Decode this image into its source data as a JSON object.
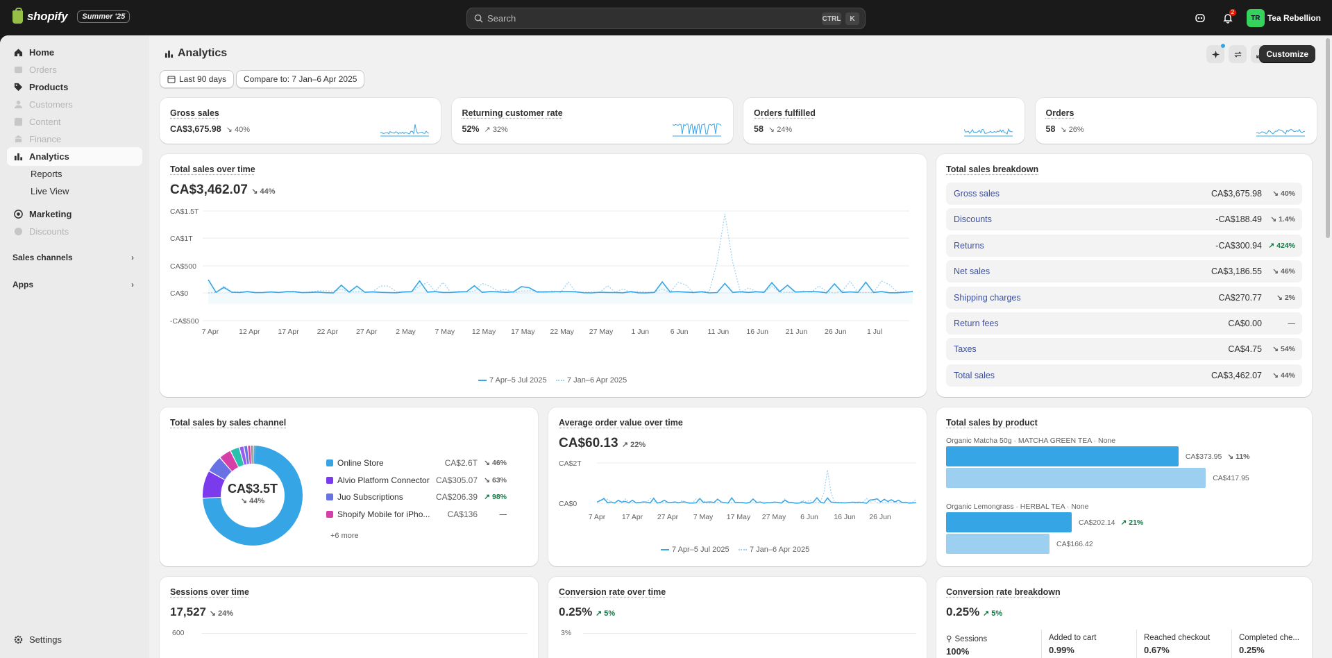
{
  "topbar": {
    "brand": "shopify",
    "edition": "Summer '25",
    "search_placeholder": "Search",
    "kbd1": "CTRL",
    "kbd2": "K",
    "notif_count": "2",
    "avatar_initials": "TR",
    "store_name": "Tea Rebellion"
  },
  "sidebar": {
    "items": [
      {
        "label": "Home"
      },
      {
        "label": "Orders"
      },
      {
        "label": "Products"
      },
      {
        "label": "Customers"
      },
      {
        "label": "Content"
      },
      {
        "label": "Finance"
      },
      {
        "label": "Analytics"
      },
      {
        "label": "Reports"
      },
      {
        "label": "Live View"
      },
      {
        "label": "Marketing"
      },
      {
        "label": "Discounts"
      }
    ],
    "sales_channels": "Sales channels",
    "apps": "Apps",
    "settings": "Settings"
  },
  "header": {
    "title": "Analytics",
    "date_range": "Last 90 days",
    "compare": "Compare to: 7 Jan–6 Apr 2025",
    "customize": "Customize"
  },
  "kpis": [
    {
      "label": "Gross sales",
      "value": "CA$3,675.98",
      "change": "40%",
      "dir": "down"
    },
    {
      "label": "Returning customer rate",
      "value": "52%",
      "change": "32%",
      "dir": "up"
    },
    {
      "label": "Orders fulfilled",
      "value": "58",
      "change": "24%",
      "dir": "down"
    },
    {
      "label": "Orders",
      "value": "58",
      "change": "26%",
      "dir": "down"
    }
  ],
  "total_sales": {
    "title": "Total sales over time",
    "value": "CA$3,462.07",
    "change": "44%",
    "yticks": [
      "CA$1.5T",
      "CA$1T",
      "CA$500",
      "CA$0",
      "-CA$500"
    ],
    "xticks": [
      "7 Apr",
      "12 Apr",
      "17 Apr",
      "22 Apr",
      "27 Apr",
      "2 May",
      "7 May",
      "12 May",
      "17 May",
      "22 May",
      "27 May",
      "1 Jun",
      "6 Jun",
      "11 Jun",
      "16 Jun",
      "21 Jun",
      "26 Jun",
      "1 Jul"
    ],
    "legend_current": "7 Apr–5 Jul 2025",
    "legend_previous": "7 Jan–6 Apr 2025"
  },
  "breakdown": {
    "title": "Total sales breakdown",
    "rows": [
      {
        "label": "Gross sales",
        "value": "CA$3,675.98",
        "change": "40%",
        "up": false
      },
      {
        "label": "Discounts",
        "value": "-CA$188.49",
        "change": "1.4%",
        "up": false
      },
      {
        "label": "Returns",
        "value": "-CA$300.94",
        "change": "424%",
        "up": true
      },
      {
        "label": "Net sales",
        "value": "CA$3,186.55",
        "change": "46%",
        "up": false
      },
      {
        "label": "Shipping charges",
        "value": "CA$270.77",
        "change": "2%",
        "up": false
      },
      {
        "label": "Return fees",
        "value": "CA$0.00",
        "change": "—",
        "up": false
      },
      {
        "label": "Taxes",
        "value": "CA$4.75",
        "change": "54%",
        "up": false
      },
      {
        "label": "Total sales",
        "value": "CA$3,462.07",
        "change": "44%",
        "up": false
      }
    ]
  },
  "by_channel": {
    "title": "Total sales by sales channel",
    "center_value": "CA$3.5T",
    "center_change": "44%",
    "channels": [
      {
        "name": "Online Store",
        "value": "CA$2.6T",
        "change": "46%",
        "color": "#35a5e6",
        "up": false
      },
      {
        "name": "Alvio Platform Connector",
        "value": "CA$305.07",
        "change": "63%",
        "color": "#7c3aed",
        "up": false
      },
      {
        "name": "Juo Subscriptions",
        "value": "CA$206.39",
        "change": "98%",
        "color": "#6872e5",
        "up": true
      },
      {
        "name": "Shopify Mobile for iPho...",
        "value": "CA$136",
        "change": "—",
        "color": "#d63fa8",
        "up": false
      }
    ],
    "more": "+6 more"
  },
  "aov": {
    "title": "Average order value over time",
    "value": "CA$60.13",
    "change": "22%",
    "yticks": [
      "CA$2T",
      "CA$0"
    ],
    "xticks": [
      "7 Apr",
      "17 Apr",
      "27 Apr",
      "7 May",
      "17 May",
      "27 May",
      "6 Jun",
      "16 Jun",
      "26 Jun"
    ],
    "legend_current": "7 Apr–5 Jul 2025",
    "legend_previous": "7 Jan–6 Apr 2025"
  },
  "by_product": {
    "title": "Total sales by product",
    "products": [
      {
        "name": "Organic Matcha 50g · MATCHA GREEN TEA · None",
        "current": "CA$373.95",
        "current_num": 373.95,
        "change": "11%",
        "up": false,
        "previous": "CA$417.95",
        "previous_num": 417.95
      },
      {
        "name": "Organic Lemongrass · HERBAL TEA · None",
        "current": "CA$202.14",
        "current_num": 202.14,
        "change": "21%",
        "up": true,
        "previous": "CA$166.42",
        "previous_num": 166.42
      }
    ]
  },
  "sessions": {
    "title": "Sessions over time",
    "value": "17,527",
    "change": "24%",
    "ytick": "600"
  },
  "conversion": {
    "title": "Conversion rate over time",
    "value": "0.25%",
    "change": "5%",
    "ytick": "3%"
  },
  "conv_breakdown": {
    "title": "Conversion rate breakdown",
    "value": "0.25%",
    "change": "5%",
    "steps": [
      {
        "label": "Sessions",
        "value": "100%"
      },
      {
        "label": "Added to cart",
        "value": "0.99%"
      },
      {
        "label": "Reached checkout",
        "value": "0.67%"
      },
      {
        "label": "Completed che...",
        "value": "0.25%"
      }
    ]
  },
  "colors": {
    "accent": "#35a5e6",
    "accent_light": "#9dd0f0",
    "up": "#0c7a43"
  }
}
